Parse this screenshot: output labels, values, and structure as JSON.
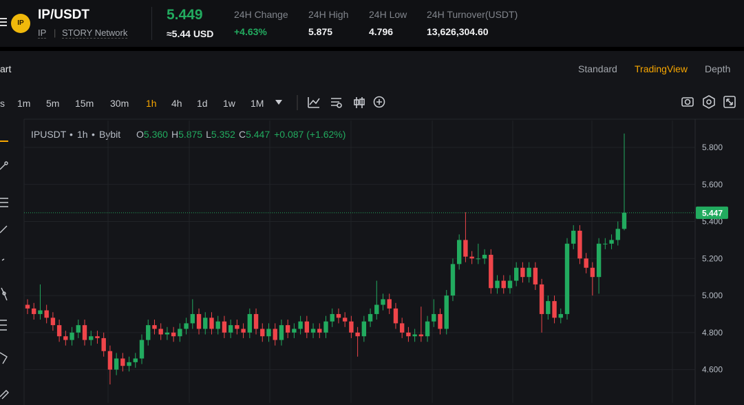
{
  "header": {
    "symbol": "IP/USDT",
    "badge": "IP",
    "base": "IP",
    "network": "STORY Network",
    "price": "5.449",
    "price_usd": "≈5.44 USD",
    "stats": [
      {
        "label": "24H Change",
        "value": "+4.63%"
      },
      {
        "label": "24H High",
        "value": "5.875"
      },
      {
        "label": "24H Low",
        "value": "4.796"
      },
      {
        "label": "24H Turnover(USDT)",
        "value": "13,626,304.60"
      }
    ]
  },
  "section": {
    "title": "art",
    "tabs": [
      "Standard",
      "TradingView",
      "Depth"
    ]
  },
  "toolbar": {
    "cut": "s",
    "intervals": [
      "1m",
      "5m",
      "15m",
      "30m",
      "1h",
      "4h",
      "1d",
      "1w",
      "1M"
    ]
  },
  "legend": {
    "symbol": "IPUSDT",
    "interval": "1h",
    "exchange": "Bybit",
    "fields": [
      {
        "label": "O",
        "value": "5.360"
      },
      {
        "label": "H",
        "value": "5.875"
      },
      {
        "label": "L",
        "value": "5.352"
      },
      {
        "label": "C",
        "value": "5.447"
      }
    ],
    "change": "+0.087 (+1.62%)"
  },
  "chart_data": {
    "type": "candlestick",
    "up_color": "#22ab5f",
    "down_color": "#ef454a",
    "ylim": [
      4.42,
      5.945
    ],
    "yticks": [
      {
        "value": 4.6,
        "label": "4.600"
      },
      {
        "value": 4.8,
        "label": "4.800"
      },
      {
        "value": 5.0,
        "label": "5.000"
      },
      {
        "value": 5.2,
        "label": "5.200"
      },
      {
        "value": 5.4,
        "label": "5.400"
      },
      {
        "value": 5.6,
        "label": "5.600"
      },
      {
        "value": 5.8,
        "label": "5.800"
      }
    ],
    "grid": true,
    "open": [
      4.95,
      4.93,
      4.9,
      4.92,
      4.88,
      4.84,
      4.78,
      4.76,
      4.8,
      4.84,
      4.76,
      4.78,
      4.77,
      4.7,
      4.6,
      4.66,
      4.62,
      4.64,
      4.66,
      4.76,
      4.84,
      4.82,
      4.79,
      4.8,
      4.78,
      4.82,
      4.85,
      4.9,
      4.82,
      4.88,
      4.82,
      4.86,
      4.8,
      4.84,
      4.82,
      4.8,
      4.9,
      4.82,
      4.78,
      4.82,
      4.76,
      4.84,
      4.8,
      4.82,
      4.86,
      4.8,
      4.82,
      4.8,
      4.86,
      4.9,
      4.88,
      4.86,
      4.8,
      4.78,
      4.86,
      4.9,
      4.95,
      4.98,
      4.93,
      4.85,
      4.8,
      4.78,
      4.79,
      4.78,
      4.86,
      4.9,
      4.82,
      5.0,
      5.17,
      5.3,
      5.21,
      5.2,
      5.2,
      5.22,
      5.04,
      5.08,
      5.04,
      5.08,
      5.15,
      5.1,
      5.15,
      5.06,
      4.9,
      4.97,
      4.88,
      4.9,
      5.28,
      5.35,
      5.2,
      5.15,
      5.1,
      5.28,
      5.28,
      5.3,
      5.36
    ],
    "high": [
      4.98,
      4.96,
      5.06,
      4.95,
      4.91,
      4.87,
      4.81,
      4.83,
      4.87,
      4.87,
      4.81,
      4.81,
      4.8,
      4.73,
      4.69,
      4.69,
      4.67,
      4.69,
      4.79,
      4.87,
      4.87,
      4.85,
      4.83,
      4.83,
      4.85,
      4.88,
      4.98,
      4.93,
      4.91,
      4.91,
      4.89,
      4.89,
      4.87,
      4.87,
      4.85,
      4.93,
      4.93,
      4.85,
      4.85,
      4.85,
      4.87,
      4.87,
      4.85,
      4.89,
      4.89,
      4.85,
      4.85,
      4.89,
      4.93,
      4.93,
      4.91,
      4.89,
      4.83,
      4.89,
      4.93,
      5.08,
      5.01,
      5.01,
      4.96,
      4.88,
      4.83,
      4.82,
      4.94,
      4.89,
      4.98,
      4.93,
      5.03,
      5.2,
      5.33,
      5.45,
      5.24,
      5.28,
      5.25,
      5.25,
      5.11,
      5.11,
      5.11,
      5.18,
      5.18,
      5.18,
      5.18,
      5.09,
      5.0,
      5.0,
      4.93,
      5.31,
      5.38,
      5.38,
      5.23,
      5.18,
      5.31,
      5.31,
      5.33,
      5.4,
      5.875
    ],
    "low": [
      4.9,
      4.87,
      4.87,
      4.85,
      4.81,
      4.75,
      4.73,
      4.73,
      4.77,
      4.73,
      4.73,
      4.74,
      4.67,
      4.52,
      4.57,
      4.59,
      4.59,
      4.61,
      4.63,
      4.73,
      4.79,
      4.76,
      4.76,
      4.75,
      4.75,
      4.79,
      4.82,
      4.79,
      4.79,
      4.79,
      4.79,
      4.77,
      4.77,
      4.79,
      4.77,
      4.77,
      4.79,
      4.75,
      4.75,
      4.73,
      4.73,
      4.77,
      4.77,
      4.79,
      4.77,
      4.77,
      4.77,
      4.77,
      4.83,
      4.85,
      4.83,
      4.77,
      4.67,
      4.75,
      4.83,
      4.87,
      4.92,
      4.9,
      4.82,
      4.77,
      4.75,
      4.75,
      4.75,
      4.75,
      4.83,
      4.79,
      4.79,
      4.97,
      5.14,
      5.18,
      5.17,
      5.17,
      5.17,
      5.01,
      5.01,
      5.01,
      5.01,
      5.05,
      5.07,
      5.07,
      5.03,
      4.8,
      4.87,
      4.85,
      4.85,
      4.87,
      5.25,
      5.17,
      5.12,
      5.0,
      5.01,
      5.25,
      5.25,
      5.27,
      5.352
    ],
    "close": [
      4.93,
      4.9,
      4.92,
      4.88,
      4.84,
      4.78,
      4.76,
      4.8,
      4.84,
      4.76,
      4.78,
      4.77,
      4.7,
      4.6,
      4.66,
      4.62,
      4.64,
      4.66,
      4.76,
      4.84,
      4.82,
      4.79,
      4.8,
      4.78,
      4.82,
      4.85,
      4.9,
      4.82,
      4.88,
      4.82,
      4.86,
      4.8,
      4.84,
      4.82,
      4.8,
      4.9,
      4.82,
      4.78,
      4.82,
      4.76,
      4.84,
      4.8,
      4.82,
      4.86,
      4.8,
      4.82,
      4.8,
      4.86,
      4.9,
      4.88,
      4.86,
      4.8,
      4.78,
      4.86,
      4.9,
      4.95,
      4.98,
      4.93,
      4.85,
      4.8,
      4.78,
      4.79,
      4.78,
      4.86,
      4.9,
      4.82,
      5.0,
      5.17,
      5.3,
      5.21,
      5.2,
      5.2,
      5.22,
      5.04,
      5.08,
      5.04,
      5.08,
      5.15,
      5.1,
      5.15,
      5.06,
      4.9,
      4.97,
      4.88,
      4.9,
      5.28,
      5.35,
      5.2,
      5.15,
      5.1,
      5.28,
      5.28,
      5.3,
      5.36,
      5.447
    ]
  }
}
